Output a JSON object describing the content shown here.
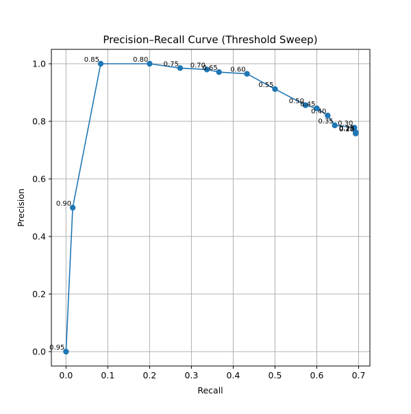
{
  "chart_data": {
    "type": "line",
    "title": "Precision–Recall Curve (Threshold Sweep)",
    "xlabel": "Recall",
    "ylabel": "Precision",
    "xlim": [
      -0.035,
      0.727
    ],
    "ylim": [
      -0.05,
      1.05
    ],
    "x_ticks": [
      "0.0",
      "0.1",
      "0.2",
      "0.3",
      "0.4",
      "0.5",
      "0.6",
      "0.7"
    ],
    "y_ticks": [
      "0.0",
      "0.2",
      "0.4",
      "0.6",
      "0.8",
      "1.0"
    ],
    "grid": true,
    "series": [
      {
        "color": "#1f77b4",
        "marker": "circle",
        "points": [
          {
            "threshold": "0.95",
            "recall": 0.0,
            "precision": 0.0
          },
          {
            "threshold": "0.90",
            "recall": 0.016,
            "precision": 0.5
          },
          {
            "threshold": "0.85",
            "recall": 0.083,
            "precision": 1.0
          },
          {
            "threshold": "0.80",
            "recall": 0.2,
            "precision": 1.0
          },
          {
            "threshold": "0.75",
            "recall": 0.273,
            "precision": 0.985
          },
          {
            "threshold": "0.70",
            "recall": 0.337,
            "precision": 0.98
          },
          {
            "threshold": "0.65",
            "recall": 0.366,
            "precision": 0.971
          },
          {
            "threshold": "0.60",
            "recall": 0.433,
            "precision": 0.965
          },
          {
            "threshold": "0.55",
            "recall": 0.5,
            "precision": 0.912
          },
          {
            "threshold": "0.50",
            "recall": 0.573,
            "precision": 0.856
          },
          {
            "threshold": "0.45",
            "recall": 0.6,
            "precision": 0.845
          },
          {
            "threshold": "0.40",
            "recall": 0.626,
            "precision": 0.82
          },
          {
            "threshold": "0.35",
            "recall": 0.643,
            "precision": 0.786
          },
          {
            "threshold": "0.30",
            "recall": 0.69,
            "precision": 0.778
          },
          {
            "threshold": "0.25",
            "recall": 0.693,
            "precision": 0.762
          },
          {
            "threshold": "0.20",
            "recall": 0.693,
            "precision": 0.758
          },
          {
            "threshold": "0.15",
            "recall": 0.693,
            "precision": 0.758
          },
          {
            "threshold": "0.10",
            "recall": 0.693,
            "precision": 0.758
          }
        ]
      }
    ]
  }
}
